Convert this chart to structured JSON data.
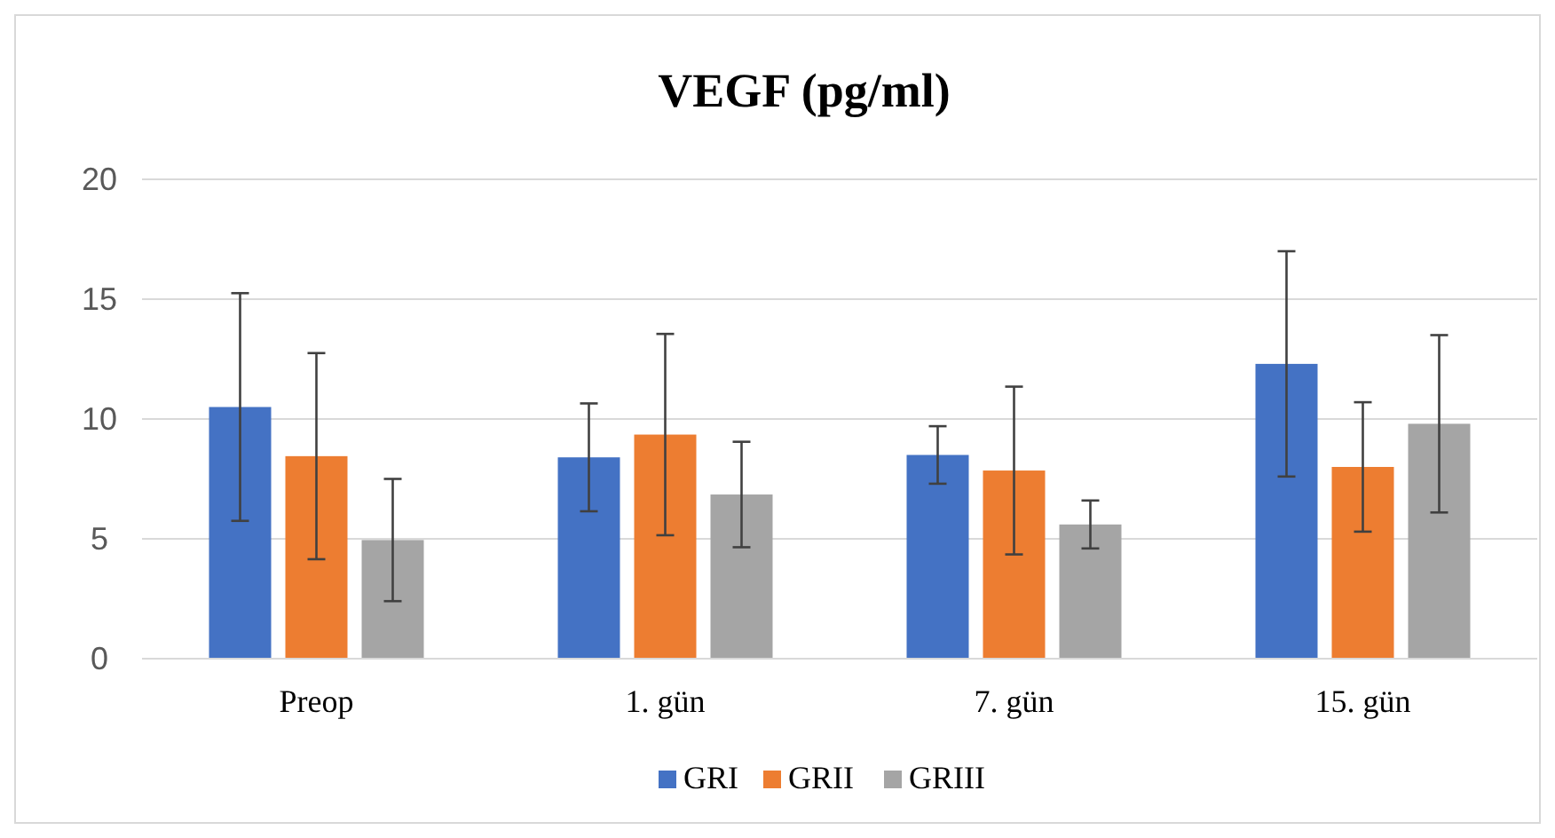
{
  "chart_data": {
    "type": "bar",
    "title": "VEGF (pg/ml)",
    "categories": [
      "Preop",
      "1. gün",
      "7. gün",
      "15. gün"
    ],
    "series": [
      {
        "name": "GRI",
        "color": "#4472c4",
        "values": [
          10.5,
          8.4,
          8.5,
          12.3
        ],
        "errors": [
          4.75,
          2.25,
          1.2,
          4.7
        ]
      },
      {
        "name": "GRII",
        "color": "#ed7d31",
        "values": [
          8.45,
          9.35,
          7.85,
          8.0
        ],
        "errors": [
          4.3,
          4.2,
          3.5,
          2.7
        ]
      },
      {
        "name": "GRIII",
        "color": "#a5a5a5",
        "values": [
          4.95,
          6.85,
          5.6,
          9.8
        ],
        "errors": [
          2.55,
          2.2,
          1.0,
          3.7
        ]
      }
    ],
    "ylim": [
      0,
      20
    ],
    "yticks": [
      0,
      5,
      10,
      15,
      20
    ],
    "grid": "y",
    "legend": "bottom"
  }
}
